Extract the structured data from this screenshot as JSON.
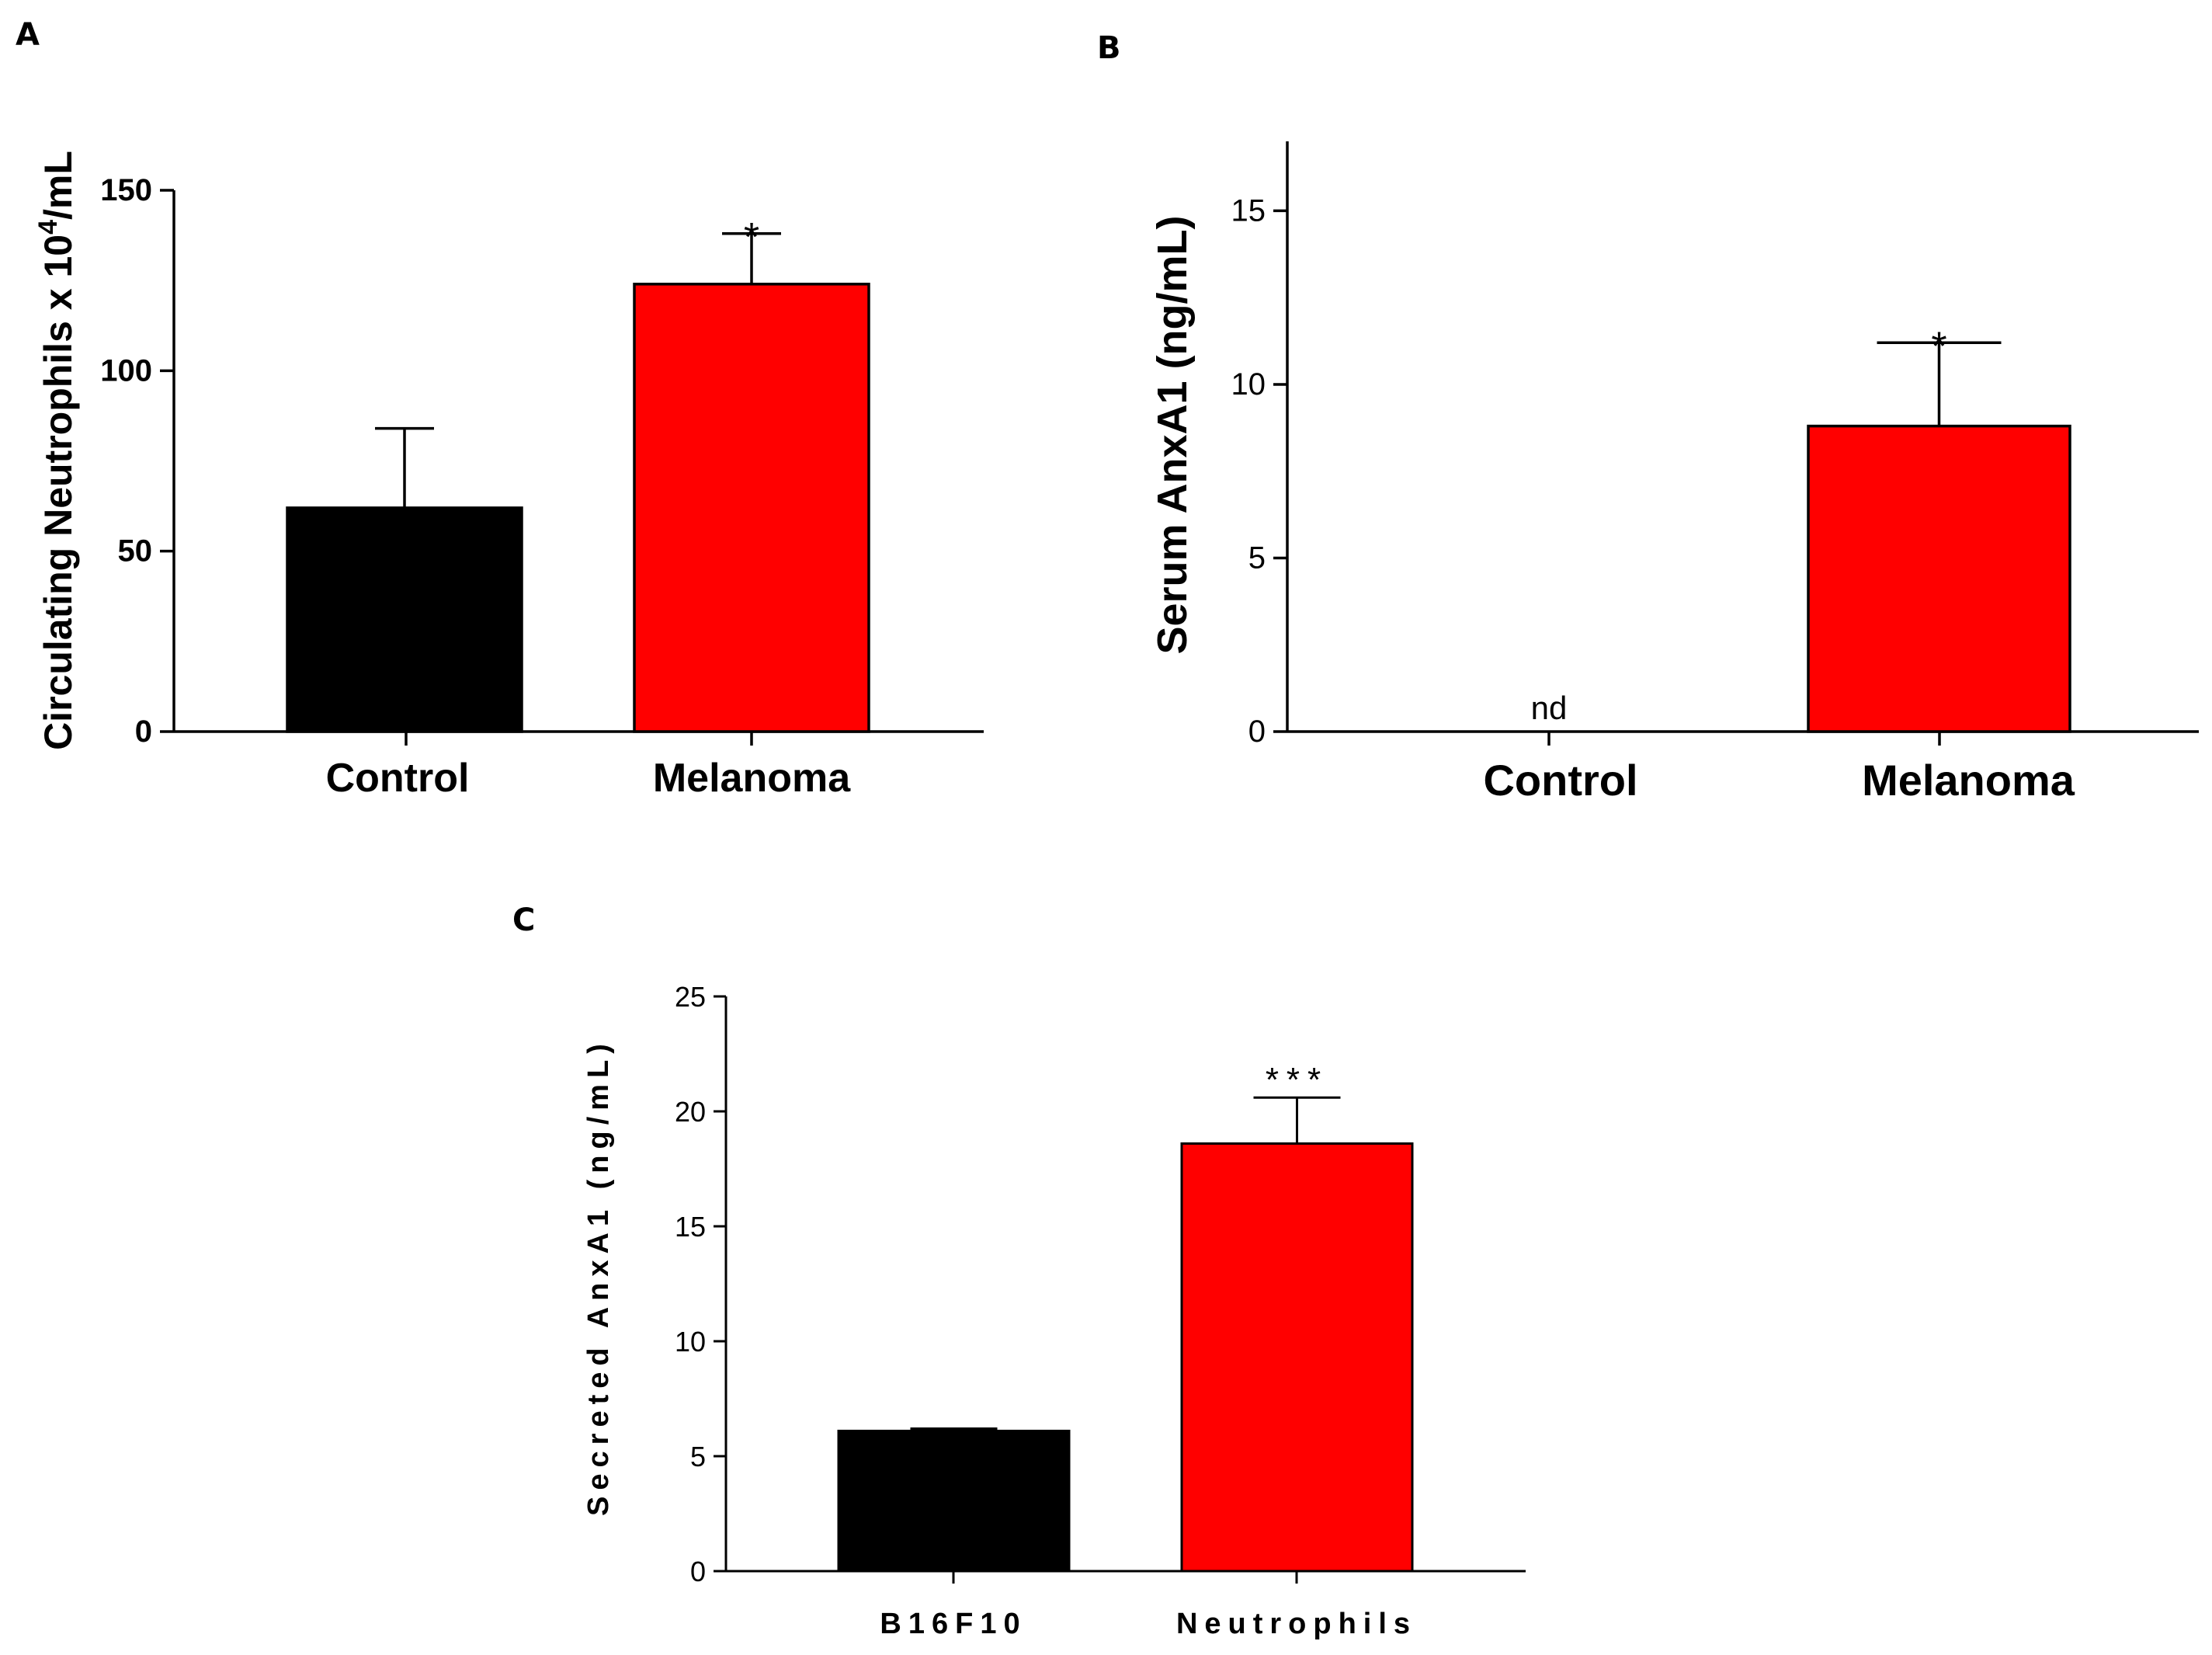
{
  "chart_data": [
    {
      "panel": "A",
      "type": "bar",
      "categories": [
        "Control",
        "Melanoma"
      ],
      "values": [
        62,
        124
      ],
      "errors": [
        22,
        14
      ],
      "colors": [
        "#000000",
        "#ff0000"
      ],
      "annotations": [
        "",
        "*"
      ],
      "ylabel_main": "Circulating Neutrophils x 10",
      "ylabel_sup": "4",
      "ylabel_tail": "/mL",
      "ylim": [
        0,
        150
      ],
      "yticks": [
        0,
        50,
        100,
        150
      ]
    },
    {
      "panel": "B",
      "type": "bar",
      "categories": [
        "Control",
        "Melanoma"
      ],
      "values": [
        0,
        8.8
      ],
      "errors": [
        0,
        2.4
      ],
      "colors": [
        "#000000",
        "#ff0000"
      ],
      "annotations": [
        "nd",
        "*"
      ],
      "ylabel": "Serum AnxA1  (ng/mL)",
      "ylim": [
        0,
        17
      ],
      "yticks": [
        0,
        5,
        10,
        15
      ]
    },
    {
      "panel": "C",
      "type": "bar",
      "categories": [
        "B16F10",
        "Neutrophils"
      ],
      "values": [
        6.1,
        18.6
      ],
      "errors": [
        0.1,
        2.0
      ],
      "colors": [
        "#000000",
        "#ff0000"
      ],
      "annotations": [
        "",
        "***"
      ],
      "ylabel": "Secreted AnxA1 (ng/mL)",
      "ylim": [
        0,
        25
      ],
      "yticks": [
        0,
        5,
        10,
        15,
        20,
        25
      ]
    }
  ]
}
